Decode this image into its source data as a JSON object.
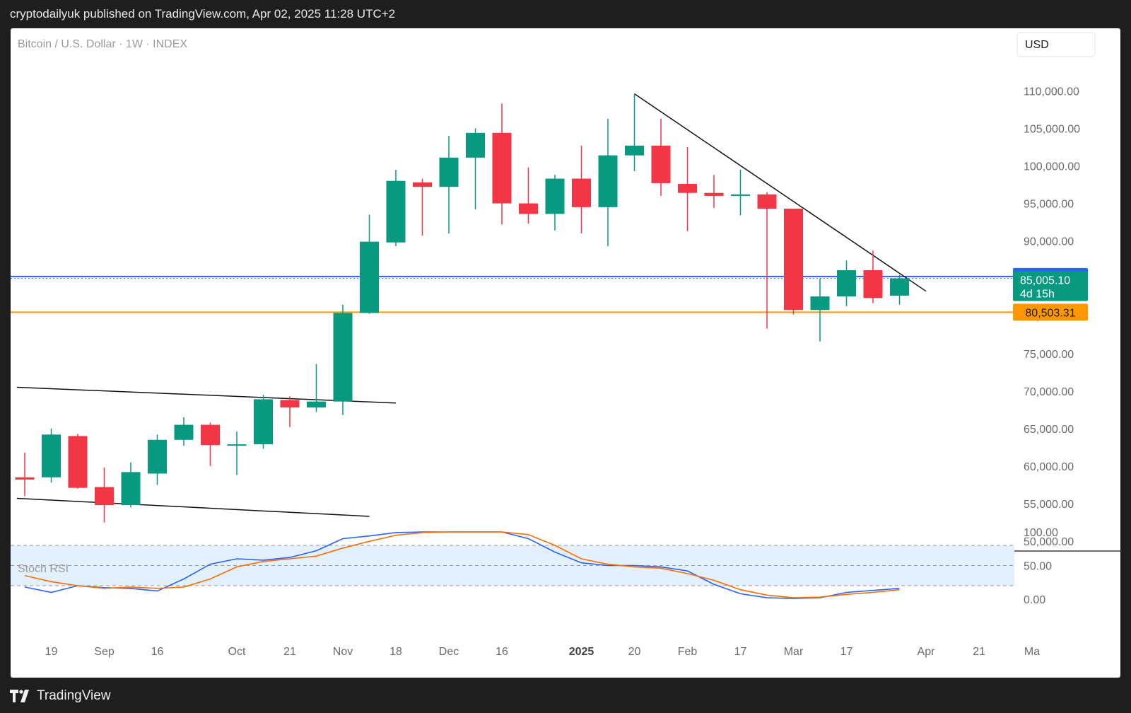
{
  "header": {
    "text": "cryptodailyuk published on TradingView.com, Apr 02, 2025 11:28 UTC+2"
  },
  "footer": {
    "brand": "TradingView"
  },
  "colors": {
    "up": "#089981",
    "down": "#f23645",
    "blue_line": "#2962ff",
    "orange_line": "#ff9800",
    "k_line": "#2962ff",
    "d_line": "#ff6d00",
    "rsi_band": "#e3f0fd"
  },
  "chart_data": [
    {
      "type": "candlestick",
      "title": "Bitcoin / U.S. Dollar · 1W · INDEX",
      "currency_button": "USD",
      "ylim": [
        46500,
        115000
      ],
      "y_ticks": [
        50000,
        55000,
        60000,
        65000,
        70000,
        75000,
        80000,
        85000,
        90000,
        95000,
        100000,
        105000,
        110000
      ],
      "y_tick_labels": [
        "50,000.00",
        "55,000.00",
        "60,000.00",
        "65,000.00",
        "70,000.00",
        "75,000.00",
        "80,000.00",
        "85,000.00",
        "90,000.00",
        "95,000.00",
        "100,000.00",
        "105,000.00",
        "110,000.00"
      ],
      "x_axis_labels": [
        {
          "i": 1,
          "text": "19",
          "bold": false
        },
        {
          "i": 3,
          "text": "Sep",
          "bold": false
        },
        {
          "i": 5,
          "text": "16",
          "bold": false
        },
        {
          "i": 8,
          "text": "Oct",
          "bold": false
        },
        {
          "i": 10,
          "text": "21",
          "bold": false
        },
        {
          "i": 12,
          "text": "Nov",
          "bold": false
        },
        {
          "i": 14,
          "text": "18",
          "bold": false
        },
        {
          "i": 16,
          "text": "Dec",
          "bold": false
        },
        {
          "i": 18,
          "text": "16",
          "bold": false
        },
        {
          "i": 21,
          "text": "2025",
          "bold": true
        },
        {
          "i": 23,
          "text": "20",
          "bold": false
        },
        {
          "i": 25,
          "text": "Feb",
          "bold": false
        },
        {
          "i": 27,
          "text": "17",
          "bold": false
        },
        {
          "i": 29,
          "text": "Mar",
          "bold": false
        },
        {
          "i": 31,
          "text": "17",
          "bold": false
        },
        {
          "i": 34,
          "text": "Apr",
          "bold": false
        },
        {
          "i": 36,
          "text": "21",
          "bold": false
        },
        {
          "i": 38,
          "text": "Ma",
          "bold": false
        }
      ],
      "candles": [
        {
          "o": 58500,
          "h": 61800,
          "l": 56000,
          "c": 58200
        },
        {
          "o": 58500,
          "h": 65000,
          "l": 57800,
          "c": 64200
        },
        {
          "o": 64000,
          "h": 64300,
          "l": 57000,
          "c": 57100
        },
        {
          "o": 57200,
          "h": 59800,
          "l": 52500,
          "c": 54800
        },
        {
          "o": 54800,
          "h": 60500,
          "l": 54500,
          "c": 59200
        },
        {
          "o": 59000,
          "h": 64200,
          "l": 57500,
          "c": 63500
        },
        {
          "o": 63500,
          "h": 66500,
          "l": 62700,
          "c": 65500
        },
        {
          "o": 65500,
          "h": 65800,
          "l": 60000,
          "c": 62800
        },
        {
          "o": 62800,
          "h": 64600,
          "l": 58800,
          "c": 62900
        },
        {
          "o": 62900,
          "h": 69500,
          "l": 62300,
          "c": 68900
        },
        {
          "o": 68800,
          "h": 69300,
          "l": 65200,
          "c": 67800
        },
        {
          "o": 67800,
          "h": 73600,
          "l": 67200,
          "c": 68600
        },
        {
          "o": 68600,
          "h": 81500,
          "l": 66800,
          "c": 80400
        },
        {
          "o": 80400,
          "h": 93500,
          "l": 80300,
          "c": 89900
        },
        {
          "o": 89800,
          "h": 99500,
          "l": 89300,
          "c": 98000
        },
        {
          "o": 97800,
          "h": 98300,
          "l": 90700,
          "c": 97200
        },
        {
          "o": 97200,
          "h": 104000,
          "l": 91000,
          "c": 101100
        },
        {
          "o": 101100,
          "h": 105000,
          "l": 94200,
          "c": 104400
        },
        {
          "o": 104400,
          "h": 108300,
          "l": 92200,
          "c": 95000
        },
        {
          "o": 95000,
          "h": 99800,
          "l": 92300,
          "c": 93600
        },
        {
          "o": 93600,
          "h": 98800,
          "l": 91400,
          "c": 98300
        },
        {
          "o": 98300,
          "h": 102700,
          "l": 91000,
          "c": 94500
        },
        {
          "o": 94500,
          "h": 106300,
          "l": 89300,
          "c": 101400
        },
        {
          "o": 101400,
          "h": 109600,
          "l": 99300,
          "c": 102700
        },
        {
          "o": 102700,
          "h": 106300,
          "l": 96000,
          "c": 97700
        },
        {
          "o": 97600,
          "h": 102500,
          "l": 91300,
          "c": 96400
        },
        {
          "o": 96400,
          "h": 98800,
          "l": 94400,
          "c": 96000
        },
        {
          "o": 96000,
          "h": 99500,
          "l": 93400,
          "c": 96200
        },
        {
          "o": 96200,
          "h": 96500,
          "l": 78300,
          "c": 94300
        },
        {
          "o": 94300,
          "h": 94300,
          "l": 80200,
          "c": 80800
        },
        {
          "o": 80800,
          "h": 85000,
          "l": 76600,
          "c": 82600
        },
        {
          "o": 82600,
          "h": 87400,
          "l": 81300,
          "c": 86100
        },
        {
          "o": 86100,
          "h": 88700,
          "l": 81700,
          "c": 82400
        },
        {
          "o": 82700,
          "h": 85500,
          "l": 81500,
          "c": 85005
        }
      ],
      "horizontal_lines": [
        {
          "value": 85261.39,
          "label": "85,261.39",
          "color": "#2962ff"
        },
        {
          "value": 80503.31,
          "label": "80,503.31",
          "color": "#ff9800"
        }
      ],
      "current_price": {
        "value": 85005.1,
        "label": "85,005.10",
        "countdown": "4d 15h"
      },
      "trendlines": [
        {
          "from": {
            "i": 23,
            "v": 109600
          },
          "to": {
            "i": 34,
            "v": 83300
          }
        },
        {
          "from": {
            "i": -0.3,
            "v": 70500
          },
          "to": {
            "i": 14,
            "v": 68400
          }
        },
        {
          "from": {
            "i": -0.3,
            "v": 55700
          },
          "to": {
            "i": 13,
            "v": 53300
          }
        }
      ]
    },
    {
      "type": "line",
      "title": "Stoch RSI",
      "ylim": [
        0,
        100
      ],
      "y_ticks": [
        0,
        50,
        100
      ],
      "y_tick_labels": [
        "0.00",
        "50.00",
        "100.00"
      ],
      "band": [
        20,
        80
      ],
      "series": [
        {
          "name": "",
          "color": "#2962ff",
          "values": [
            18,
            10,
            20,
            17,
            16,
            12,
            30,
            52,
            60,
            58,
            62,
            72,
            90,
            94,
            99,
            100,
            100,
            100,
            100,
            90,
            70,
            54,
            50,
            50,
            48,
            42,
            22,
            8,
            2,
            1,
            2,
            10,
            13,
            16
          ]
        },
        {
          "name": "",
          "color": "#ff6d00",
          "values": [
            35,
            26,
            20,
            16,
            18,
            16,
            18,
            30,
            48,
            56,
            60,
            64,
            76,
            86,
            95,
            99,
            100,
            100,
            100,
            96,
            80,
            60,
            52,
            48,
            46,
            38,
            28,
            14,
            6,
            2,
            3,
            7,
            10,
            14
          ]
        }
      ]
    }
  ]
}
